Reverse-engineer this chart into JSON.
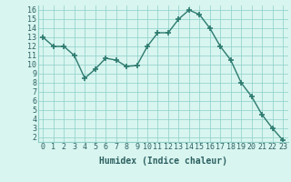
{
  "x": [
    0,
    1,
    2,
    3,
    4,
    5,
    6,
    7,
    8,
    9,
    10,
    11,
    12,
    13,
    14,
    15,
    16,
    17,
    18,
    19,
    20,
    21,
    22,
    23
  ],
  "y": [
    13,
    12,
    12,
    11,
    8.5,
    9.5,
    10.7,
    10.5,
    9.8,
    9.9,
    12,
    13.5,
    13.5,
    15,
    16,
    15.5,
    14,
    12,
    10.5,
    8,
    6.5,
    4.5,
    3,
    1.7
  ],
  "line_color": "#2d7a6e",
  "marker": "+",
  "marker_size": 4,
  "bg_color": "#d8f5f0",
  "grid_color": "#8ccfc7",
  "xlabel": "Humidex (Indice chaleur)",
  "xlim": [
    -0.5,
    23.5
  ],
  "ylim": [
    1.5,
    16.5
  ],
  "yticks": [
    2,
    3,
    4,
    5,
    6,
    7,
    8,
    9,
    10,
    11,
    12,
    13,
    14,
    15,
    16
  ],
  "xticks": [
    0,
    1,
    2,
    3,
    4,
    5,
    6,
    7,
    8,
    9,
    10,
    11,
    12,
    13,
    14,
    15,
    16,
    17,
    18,
    19,
    20,
    21,
    22,
    23
  ],
  "label_fontsize": 7,
  "tick_fontsize": 6
}
